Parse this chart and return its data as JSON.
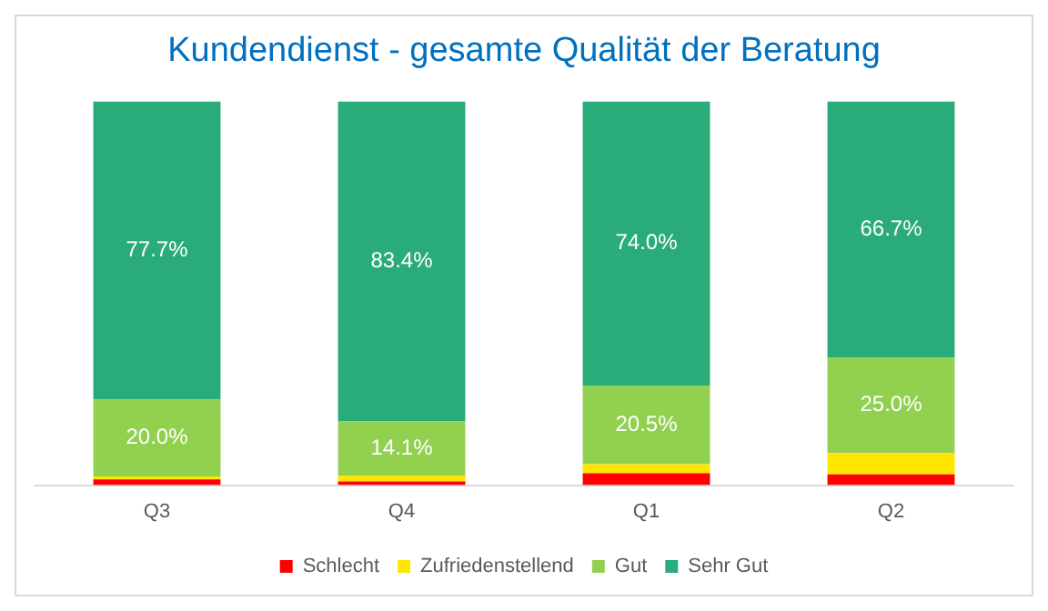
{
  "chart_data": {
    "type": "bar",
    "title": "Kundendienst - gesamte Qualität der Beratung",
    "categories": [
      "Q3",
      "Q4",
      "Q1",
      "Q2"
    ],
    "stacked": true,
    "legend": "bottom",
    "grid": false,
    "tick_labels": "x",
    "series": [
      {
        "name": "Schlecht",
        "color": "#ff0000",
        "values": [
          1.5,
          1.0,
          3.1,
          2.8
        ],
        "value_labels": [
          null,
          null,
          null,
          null
        ]
      },
      {
        "name": "Zufriedenstellend",
        "color": "#ffe600",
        "values": [
          0.8,
          1.5,
          2.4,
          5.5
        ],
        "value_labels": [
          null,
          null,
          null,
          null
        ]
      },
      {
        "name": "Gut",
        "color": "#92d050",
        "values": [
          20.0,
          14.1,
          20.5,
          25.0
        ],
        "value_labels": [
          "20.0%",
          "14.1%",
          "20.5%",
          "25.0%"
        ]
      },
      {
        "name": "Sehr Gut",
        "color": "#2aab7a",
        "values": [
          77.7,
          83.4,
          74.0,
          66.7
        ],
        "value_labels": [
          "77.7%",
          "83.4%",
          "74.0%",
          "66.7%"
        ]
      }
    ]
  }
}
